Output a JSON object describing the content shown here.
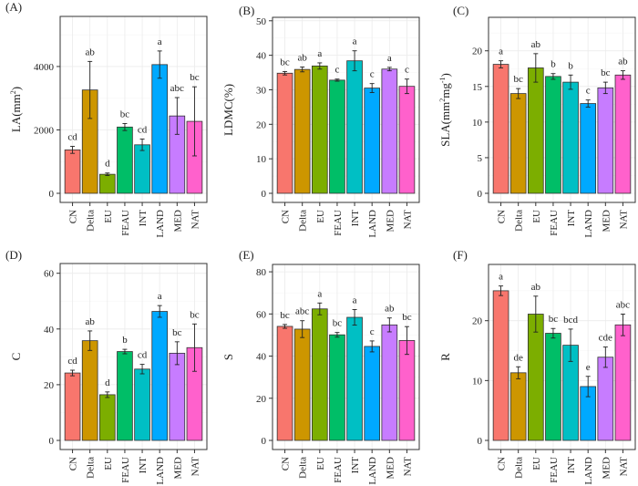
{
  "chart_data": [
    {
      "type": "bar",
      "panel": "(A)",
      "ylabel": "LA(mm²)",
      "ylabel_main": "LA(mm",
      "ylabel_sup": "2",
      "ylabel_end": ")",
      "categories": [
        "CN",
        "Delta",
        "EU",
        "FEAU",
        "INT",
        "LAND",
        "MED",
        "NAT"
      ],
      "values": [
        1370,
        3260,
        600,
        2090,
        1530,
        4060,
        2440,
        2270
      ],
      "errors": [
        110,
        900,
        40,
        110,
        180,
        430,
        580,
        1090
      ],
      "letters": [
        "cd",
        "ab",
        "d",
        "bc",
        "cd",
        "a",
        "abc",
        "bc"
      ],
      "yticks": [
        0,
        2000,
        4000
      ],
      "ylim": [
        0,
        5580
      ],
      "grid": true
    },
    {
      "type": "bar",
      "panel": "(B)",
      "ylabel": "LDMC(%)",
      "categories": [
        "CN",
        "Delta",
        "EU",
        "FEAU",
        "INT",
        "LAND",
        "MED",
        "NAT"
      ],
      "values": [
        34.8,
        35.9,
        36.9,
        32.8,
        38.4,
        30.5,
        36.0,
        31.0
      ],
      "errors": [
        0.5,
        0.7,
        0.9,
        0.3,
        2.9,
        1.3,
        0.5,
        2.1
      ],
      "letters": [
        "bc",
        "ab",
        "a",
        "c",
        "a",
        "c",
        "a",
        "c"
      ],
      "yticks": [
        0,
        10,
        20,
        30,
        40,
        50
      ],
      "ylim": [
        0,
        51
      ],
      "grid": true
    },
    {
      "type": "bar",
      "panel": "(C)",
      "ylabel": "SLA(mm²mg⁻¹)",
      "ylabel_main": "SLA(mm",
      "ylabel_sup": "2",
      "ylabel_mid": "mg",
      "ylabel_sup2": "-1",
      "ylabel_end": ")",
      "categories": [
        "CN",
        "Delta",
        "EU",
        "FEAU",
        "INT",
        "LAND",
        "MED",
        "NAT"
      ],
      "values": [
        18.1,
        14.0,
        17.6,
        16.4,
        15.6,
        12.6,
        14.8,
        16.6
      ],
      "errors": [
        0.5,
        0.7,
        2.0,
        0.4,
        1.0,
        0.5,
        0.8,
        0.6
      ],
      "letters": [
        "a",
        "bc",
        "ab",
        "b",
        "b",
        "c",
        "bc",
        "ab"
      ],
      "yticks": [
        0,
        5,
        10,
        15,
        20
      ],
      "ylim": [
        0,
        24.7
      ],
      "grid": true
    },
    {
      "type": "bar",
      "panel": "(D)",
      "ylabel": "C",
      "categories": [
        "CN",
        "Delta",
        "EU",
        "FEAU",
        "INT",
        "LAND",
        "MED",
        "NAT"
      ],
      "values": [
        24.2,
        35.8,
        16.4,
        31.9,
        25.6,
        46.3,
        31.3,
        33.3
      ],
      "errors": [
        1.0,
        3.5,
        1.0,
        0.8,
        1.7,
        2.1,
        4.1,
        8.5
      ],
      "letters": [
        "cd",
        "ab",
        "d",
        "b",
        "cd",
        "a",
        "bc",
        "bc"
      ],
      "yticks": [
        0,
        20,
        40,
        60
      ],
      "ylim": [
        0,
        63.5
      ],
      "grid": true
    },
    {
      "type": "bar",
      "panel": "(E)",
      "ylabel": "S",
      "categories": [
        "CN",
        "Delta",
        "EU",
        "FEAU",
        "INT",
        "LAND",
        "MED",
        "NAT"
      ],
      "values": [
        54.1,
        52.8,
        62.4,
        50.1,
        58.4,
        44.6,
        54.8,
        47.4
      ],
      "errors": [
        0.9,
        4.0,
        2.8,
        1.1,
        3.7,
        2.6,
        3.3,
        6.6
      ],
      "letters": [
        "bc",
        "abc",
        "a",
        "bc",
        "a",
        "c",
        "ab",
        "bc"
      ],
      "yticks": [
        0,
        20,
        40,
        60,
        80
      ],
      "ylim": [
        0,
        83.5
      ],
      "grid": true
    },
    {
      "type": "bar",
      "panel": "(F)",
      "ylabel": "R",
      "categories": [
        "CN",
        "Delta",
        "EU",
        "FEAU",
        "INT",
        "LAND",
        "MED",
        "NAT"
      ],
      "values": [
        25.0,
        11.3,
        21.1,
        17.9,
        15.9,
        9.0,
        13.9,
        19.3
      ],
      "errors": [
        0.8,
        1.0,
        3.0,
        0.8,
        2.7,
        1.7,
        1.7,
        1.8
      ],
      "letters": [
        "a",
        "de",
        "ab",
        "bc",
        "bcd",
        "e",
        "cde",
        "abc"
      ],
      "yticks": [
        0,
        10,
        20
      ],
      "ylim": [
        0,
        29.4
      ],
      "grid": true
    }
  ],
  "colors": {
    "CN": "#F8766D",
    "Delta": "#CD9600",
    "EU": "#7CAE00",
    "FEAU": "#00BE67",
    "INT": "#00BFC4",
    "LAND": "#00A9FF",
    "MED": "#C77CFF",
    "NAT": "#FF61CC"
  }
}
